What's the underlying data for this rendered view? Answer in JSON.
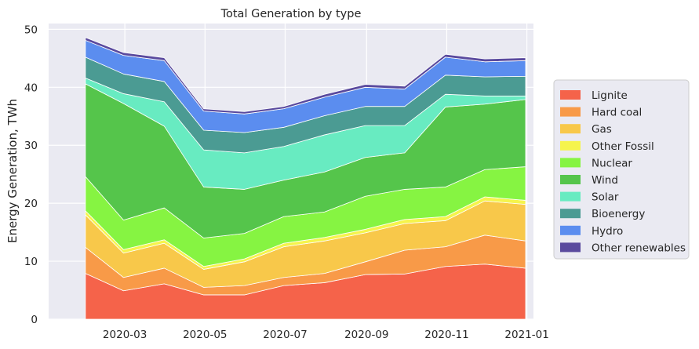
{
  "chart_data": {
    "type": "area",
    "stacked": true,
    "title": "Total Generation by type",
    "xlabel": "",
    "ylabel": "Energy Generation, TWh",
    "ylim": [
      0,
      51
    ],
    "yticks": [
      0,
      10,
      20,
      30,
      40,
      50
    ],
    "x": [
      "2020-01-31",
      "2020-02-29",
      "2020-03-31",
      "2020-04-30",
      "2020-05-31",
      "2020-06-30",
      "2020-07-31",
      "2020-08-31",
      "2020-09-30",
      "2020-10-31",
      "2020-11-30",
      "2020-12-31"
    ],
    "xlim": [
      "2020-01-03",
      "2021-01-06"
    ],
    "xticks": [
      "2020-03-01",
      "2020-05-01",
      "2020-07-01",
      "2020-09-01",
      "2020-11-01",
      "2021-01-01"
    ],
    "xtick_labels": [
      "2020-03",
      "2020-05",
      "2020-07",
      "2020-09",
      "2020-11",
      "2021-01"
    ],
    "grid": true,
    "legend_position": "right",
    "series": [
      {
        "name": "Lignite",
        "color": "#f5634a",
        "values": [
          7.9,
          4.9,
          6.1,
          4.2,
          4.2,
          5.8,
          6.3,
          7.7,
          7.8,
          9.1,
          9.5,
          8.8
        ]
      },
      {
        "name": "Hard coal",
        "color": "#f89a48",
        "values": [
          4.5,
          2.3,
          2.7,
          1.3,
          1.6,
          1.4,
          1.6,
          2.2,
          4.1,
          3.4,
          5.0,
          4.7
        ]
      },
      {
        "name": "Gas",
        "color": "#f8c84a",
        "values": [
          5.6,
          4.2,
          4.3,
          3.1,
          4.1,
          5.3,
          5.6,
          5.0,
          4.6,
          4.5,
          5.9,
          6.3
        ]
      },
      {
        "name": "Other Fossil",
        "color": "#f5f44c",
        "values": [
          0.7,
          0.6,
          0.6,
          0.5,
          0.5,
          0.6,
          0.6,
          0.6,
          0.7,
          0.7,
          0.7,
          0.7
        ]
      },
      {
        "name": "Nuclear",
        "color": "#86f442",
        "values": [
          5.9,
          5.1,
          5.5,
          4.9,
          4.4,
          4.6,
          4.4,
          5.7,
          5.2,
          5.1,
          4.7,
          5.8
        ]
      },
      {
        "name": "Wind",
        "color": "#55c54b",
        "values": [
          16.0,
          20.1,
          14.1,
          8.8,
          7.6,
          6.3,
          6.9,
          6.7,
          6.3,
          13.8,
          11.3,
          11.6
        ]
      },
      {
        "name": "Solar",
        "color": "#68ebc1",
        "values": [
          1.0,
          1.7,
          4.2,
          6.4,
          6.3,
          5.8,
          6.4,
          5.5,
          4.7,
          2.2,
          1.4,
          0.6
        ]
      },
      {
        "name": "Bioenergy",
        "color": "#4b9b93",
        "values": [
          3.6,
          3.4,
          3.5,
          3.4,
          3.5,
          3.3,
          3.3,
          3.3,
          3.3,
          3.3,
          3.3,
          3.4
        ]
      },
      {
        "name": "Hydro",
        "color": "#5b8def",
        "values": [
          2.9,
          3.2,
          3.6,
          3.3,
          3.2,
          3.2,
          3.2,
          3.3,
          3.0,
          3.1,
          2.6,
          2.7
        ]
      },
      {
        "name": "Other renewables",
        "color": "#5a4a9e",
        "values": [
          0.5,
          0.5,
          0.5,
          0.4,
          0.4,
          0.4,
          0.5,
          0.5,
          0.5,
          0.5,
          0.5,
          0.5
        ]
      }
    ]
  }
}
